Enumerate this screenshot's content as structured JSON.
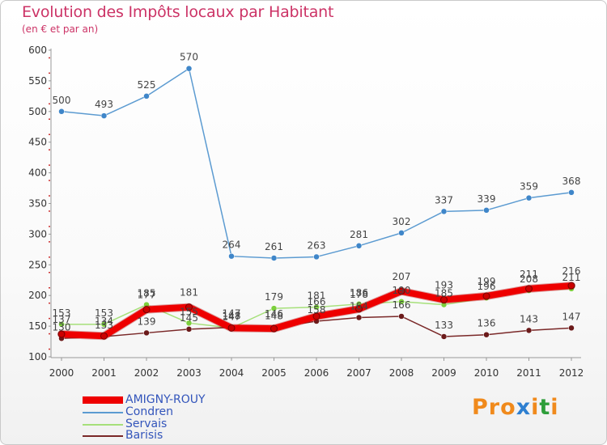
{
  "title": "Evolution des Impôts locaux par Habitant",
  "subtitle": "(en € et par an)",
  "logo": {
    "text": "Proxiti",
    "letters": [
      "P",
      "r",
      "o",
      "x",
      "i",
      "t",
      "i"
    ],
    "colors": [
      "#f08a1c",
      "#f08a1c",
      "#f08a1c",
      "#2e7fd0",
      "#f08a1c",
      "#2e9e3a",
      "#f08a1c"
    ]
  },
  "chart_data": {
    "type": "line",
    "title": "Evolution des Impôts locaux par Habitant",
    "subtitle": "(en € et par an)",
    "x": [
      "2000",
      "2001",
      "2002",
      "2003",
      "2004",
      "2005",
      "2006",
      "2007",
      "2008",
      "2009",
      "2010",
      "2011",
      "2012"
    ],
    "ylim": [
      100,
      600
    ],
    "yticks": [
      "100",
      "150",
      "200",
      "250",
      "300",
      "350",
      "400",
      "450",
      "500",
      "550",
      "600"
    ],
    "grid": false,
    "legend_position": "bottom-left",
    "series": [
      {
        "name": "Condren",
        "color": "#5c9bd1",
        "marker": "#3f86c9",
        "values": [
          500,
          493,
          525,
          570,
          264,
          261,
          263,
          281,
          302,
          337,
          339,
          359,
          368
        ],
        "labels": [
          "500",
          "493",
          "525",
          "570",
          "264",
          "261",
          "263",
          "281",
          "302",
          "337",
          "339",
          "359",
          "368"
        ]
      },
      {
        "name": "Servais",
        "color": "#a6e07a",
        "marker": "#7ccf3c",
        "values": [
          153,
          153,
          185,
          155,
          147,
          179,
          181,
          186,
          190,
          185,
          196,
          208,
          211
        ],
        "labels": [
          "153",
          "153",
          "185",
          "155",
          "147",
          "179",
          "181",
          "186",
          "190",
          "185",
          "196",
          "208",
          "211"
        ]
      },
      {
        "name": "Barisis",
        "color": "#7a2828",
        "marker": "#6b1a1a",
        "values": [
          130,
          133,
          139,
          145,
          148,
          148,
          158,
          164,
          166,
          133,
          136,
          143,
          147
        ],
        "labels": [
          "130",
          "133",
          "139",
          "145",
          "148",
          "148",
          "158",
          "164",
          "166",
          "133",
          "136",
          "143",
          "147"
        ]
      },
      {
        "name": "AMIGNY-ROUY",
        "color": "#ee0000",
        "marker": "#cc0000",
        "values": [
          137,
          134,
          177,
          181,
          147,
          146,
          166,
          178,
          207,
          193,
          199,
          211,
          216
        ],
        "labels": [
          "137",
          "134",
          "177",
          "181",
          "147",
          "146",
          "166",
          "178",
          "207",
          "193",
          "199",
          "211",
          "216"
        ]
      }
    ],
    "legend": [
      {
        "name": "AMIGNY-ROUY",
        "color": "#ee0000",
        "thickness": 9
      },
      {
        "name": "Condren",
        "color": "#5c9bd1",
        "thickness": 2
      },
      {
        "name": "Servais",
        "color": "#a6e07a",
        "thickness": 2
      },
      {
        "name": "Barisis",
        "color": "#7a2828",
        "thickness": 2
      }
    ]
  }
}
